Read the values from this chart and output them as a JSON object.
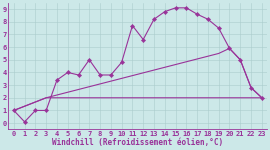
{
  "xlabel": "Windchill (Refroidissement éolien,°C)",
  "background_color": "#cce8e8",
  "grid_color": "#aacccc",
  "line_color": "#993399",
  "xlim_min": -0.5,
  "xlim_max": 23.5,
  "ylim_min": -0.5,
  "ylim_max": 9.5,
  "xticks": [
    0,
    1,
    2,
    3,
    4,
    5,
    6,
    7,
    8,
    9,
    10,
    11,
    12,
    13,
    14,
    15,
    16,
    17,
    18,
    19,
    20,
    21,
    22,
    23
  ],
  "yticks": [
    0,
    1,
    2,
    3,
    4,
    5,
    6,
    7,
    8,
    9
  ],
  "line1_x": [
    0,
    1,
    2,
    3,
    4,
    5,
    6,
    7,
    8,
    9,
    10,
    11,
    12,
    13,
    14,
    15,
    16,
    17,
    18,
    19,
    20,
    21,
    22,
    23
  ],
  "line1_y": [
    1.0,
    0.1,
    1.0,
    1.0,
    3.4,
    4.0,
    3.8,
    5.0,
    3.8,
    3.8,
    4.8,
    7.7,
    6.6,
    8.2,
    8.8,
    9.1,
    9.1,
    8.6,
    8.2,
    7.5,
    5.9,
    5.0,
    2.8,
    2.0
  ],
  "line2_x": [
    0,
    3,
    22,
    23
  ],
  "line2_y": [
    1.0,
    2.0,
    2.0,
    2.0
  ],
  "line3_x": [
    0,
    3,
    19,
    20,
    21,
    22,
    23
  ],
  "line3_y": [
    1.0,
    2.0,
    5.5,
    5.9,
    5.0,
    2.8,
    2.0
  ],
  "xlabel_fontsize": 5.5,
  "tick_fontsize": 5,
  "line_width": 0.8,
  "marker_size": 2.2
}
